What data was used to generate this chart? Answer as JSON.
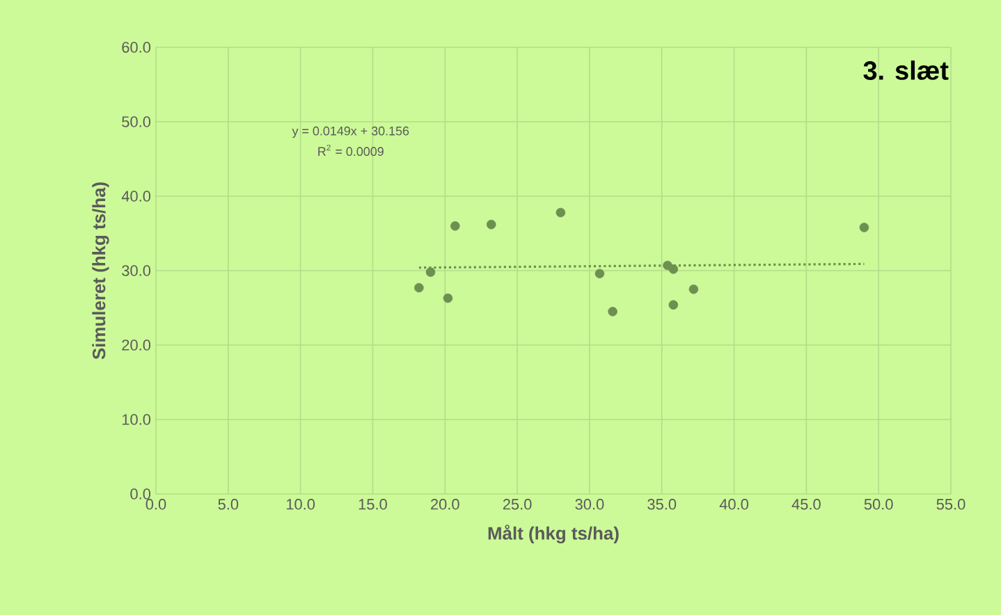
{
  "chart_data": {
    "type": "scatter",
    "title": "3. slæt",
    "xlabel": "Målt (hkg ts/ha)",
    "ylabel": "Simuleret (hkg ts/ha)",
    "x": [
      18.2,
      19.0,
      20.2,
      20.7,
      23.2,
      28.0,
      30.7,
      31.6,
      35.4,
      35.8,
      35.8,
      37.2,
      49.0
    ],
    "series": [
      {
        "color": "#6e8f52",
        "marker": "circle",
        "values": [
          27.7,
          29.8,
          26.3,
          36.0,
          36.2,
          37.8,
          29.6,
          24.5,
          30.7,
          30.2,
          25.4,
          27.5,
          35.8
        ]
      },
      {
        "type": "line",
        "color": "#6e8f52",
        "line_style": "dotted",
        "x": [
          18.2,
          49.0
        ],
        "values": [
          30.4,
          30.9
        ]
      }
    ],
    "annotations": [
      "y = 0.0149x + 30.156",
      "R$^{2}$ = 0.0009"
    ],
    "xlim": [
      0,
      55
    ],
    "ylim": [
      0,
      60
    ],
    "xticks": [
      {
        "value": 0,
        "label": "0.0"
      },
      {
        "value": 5,
        "label": "5.0"
      },
      {
        "value": 10,
        "label": "10.0"
      },
      {
        "value": 15,
        "label": "15.0"
      },
      {
        "value": 20,
        "label": "20.0"
      },
      {
        "value": 25,
        "label": "25.0"
      },
      {
        "value": 30,
        "label": "30.0"
      },
      {
        "value": 35,
        "label": "35.0"
      },
      {
        "value": 40,
        "label": "40.0"
      },
      {
        "value": 45,
        "label": "45.0"
      },
      {
        "value": 50,
        "label": "50.0"
      },
      {
        "value": 55,
        "label": "55.0"
      }
    ],
    "yticks": [
      {
        "value": 0,
        "label": "0.0"
      },
      {
        "value": 10,
        "label": "10.0"
      },
      {
        "value": 20,
        "label": "20.0"
      },
      {
        "value": 30,
        "label": "30.0"
      },
      {
        "value": 40,
        "label": "40.0"
      },
      {
        "value": 50,
        "label": "50.0"
      },
      {
        "value": 60,
        "label": "60.0"
      }
    ],
    "grid": true
  }
}
